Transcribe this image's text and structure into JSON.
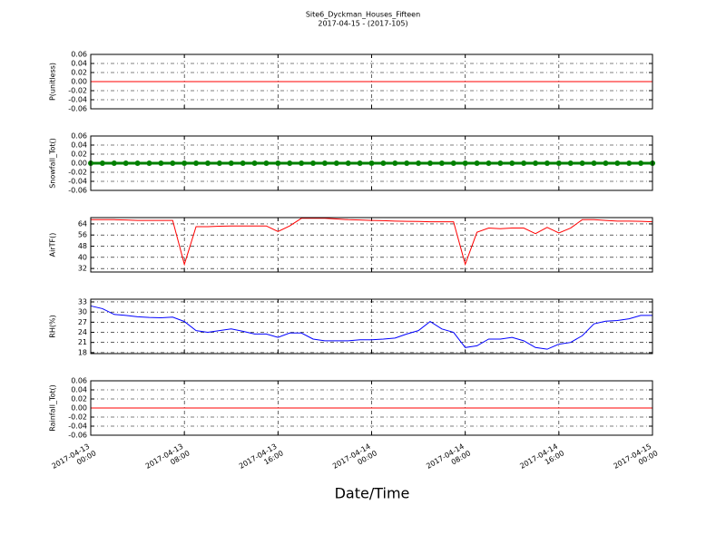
{
  "title": "Site6_Dyckman_Houses_Fifteen",
  "subtitle": "2017-04-15 - (2017-105)",
  "x_axis": {
    "label": "Date/Time",
    "xlim": [
      "2017-04-13 00:00",
      "2017-04-15 00:00"
    ],
    "xticks": [
      "2017-04-13 00:00",
      "2017-04-13 08:00",
      "2017-04-13 16:00",
      "2017-04-14 00:00",
      "2017-04-14 08:00",
      "2017-04-14 16:00",
      "2017-04-15 00:00"
    ],
    "x": [
      "2017-04-13 00:00",
      "2017-04-13 01:00",
      "2017-04-13 02:00",
      "2017-04-13 03:00",
      "2017-04-13 04:00",
      "2017-04-13 05:00",
      "2017-04-13 06:00",
      "2017-04-13 07:00",
      "2017-04-13 08:00",
      "2017-04-13 09:00",
      "2017-04-13 10:00",
      "2017-04-13 11:00",
      "2017-04-13 12:00",
      "2017-04-13 13:00",
      "2017-04-13 14:00",
      "2017-04-13 15:00",
      "2017-04-13 16:00",
      "2017-04-13 17:00",
      "2017-04-13 18:00",
      "2017-04-13 19:00",
      "2017-04-13 20:00",
      "2017-04-13 21:00",
      "2017-04-13 22:00",
      "2017-04-13 23:00",
      "2017-04-14 00:00",
      "2017-04-14 01:00",
      "2017-04-14 02:00",
      "2017-04-14 03:00",
      "2017-04-14 04:00",
      "2017-04-14 05:00",
      "2017-04-14 06:00",
      "2017-04-14 07:00",
      "2017-04-14 08:00",
      "2017-04-14 09:00",
      "2017-04-14 10:00",
      "2017-04-14 11:00",
      "2017-04-14 12:00",
      "2017-04-14 13:00",
      "2017-04-14 14:00",
      "2017-04-14 15:00",
      "2017-04-14 16:00",
      "2017-04-14 17:00",
      "2017-04-14 18:00",
      "2017-04-14 19:00",
      "2017-04-14 20:00",
      "2017-04-14 21:00",
      "2017-04-14 22:00",
      "2017-04-14 23:00",
      "2017-04-15 00:00"
    ]
  },
  "chart_data": [
    {
      "type": "line",
      "ylabel": "P(unitless)",
      "ylim": [
        -0.06,
        0.06
      ],
      "grid": true,
      "yticks": [
        -0.06,
        -0.04,
        -0.02,
        {
          "value": 0,
          "label": "0.00"
        },
        0.02,
        0.04,
        0.06
      ],
      "series": [
        {
          "color": "#ff0000",
          "markers": false,
          "values": [
            0,
            0,
            0,
            0,
            0,
            0,
            0,
            0,
            0,
            0,
            0,
            0,
            0,
            0,
            0,
            0,
            0,
            0,
            0,
            0,
            0,
            0,
            0,
            0,
            0,
            0,
            0,
            0,
            0,
            0,
            0,
            0,
            0,
            0,
            0,
            0,
            0,
            0,
            0,
            0,
            0,
            0,
            0,
            0,
            0,
            0,
            0,
            0,
            0
          ]
        }
      ]
    },
    {
      "type": "line",
      "ylabel": "Snowfall_Tot()",
      "ylim": [
        -0.06,
        0.06
      ],
      "grid": true,
      "yticks": [
        -0.06,
        -0.04,
        -0.02,
        {
          "value": 0,
          "label": "0.00"
        },
        0.02,
        0.04,
        0.06
      ],
      "series": [
        {
          "color": "#008000",
          "markers": true,
          "values": [
            0,
            0,
            0,
            0,
            0,
            0,
            0,
            0,
            0,
            0,
            0,
            0,
            0,
            0,
            0,
            0,
            0,
            0,
            0,
            0,
            0,
            0,
            0,
            0,
            0,
            0,
            0,
            0,
            0,
            0,
            0,
            0,
            0,
            0,
            0,
            0,
            0,
            0,
            0,
            0,
            0,
            0,
            0,
            0,
            0,
            0,
            0,
            0,
            0
          ]
        }
      ]
    },
    {
      "type": "line",
      "ylabel": "AirTF()",
      "ylim": [
        29.5,
        68.5
      ],
      "grid": true,
      "yticks": [
        32,
        40,
        48,
        56,
        64
      ],
      "series": [
        {
          "color": "#ff0000",
          "markers": false,
          "values": [
            67,
            67,
            67,
            66.8,
            66.5,
            66.5,
            66.5,
            66.5,
            35,
            62,
            62,
            62.3,
            62.5,
            62.5,
            62.5,
            62.5,
            58.5,
            62.5,
            68,
            68,
            68,
            67.5,
            67,
            66.8,
            66.5,
            66.3,
            66,
            65.8,
            65.7,
            65.5,
            65.5,
            65.5,
            35,
            58,
            61,
            60.5,
            61,
            61,
            57,
            61.5,
            57.5,
            61,
            67,
            67,
            66.5,
            66,
            66,
            65.8,
            65.5
          ]
        }
      ]
    },
    {
      "type": "line",
      "ylabel": "RH(%)",
      "ylim": [
        17.7,
        33.8
      ],
      "grid": true,
      "yticks": [
        18,
        21,
        24,
        27,
        30,
        33
      ],
      "series": [
        {
          "color": "#0000ff",
          "markers": false,
          "values": [
            31.8,
            31,
            29.3,
            29,
            28.6,
            28.4,
            28.3,
            28.5,
            27.2,
            24.5,
            24,
            24.5,
            25,
            24.3,
            23.5,
            23.5,
            22.5,
            23.8,
            23.8,
            22,
            21.5,
            21.5,
            21.5,
            21.8,
            21.8,
            22,
            22.3,
            23.5,
            24.5,
            27.2,
            25,
            24,
            19.5,
            20,
            22,
            22,
            22.5,
            21.5,
            19.5,
            19,
            20.5,
            21,
            23,
            26.5,
            27.3,
            27.5,
            28,
            29,
            29
          ]
        }
      ]
    },
    {
      "type": "line",
      "ylabel": "Rainfall_Tot()",
      "ylim": [
        -0.06,
        0.06
      ],
      "grid": true,
      "yticks": [
        -0.06,
        -0.04,
        -0.02,
        {
          "value": 0,
          "label": "0.00"
        },
        0.02,
        0.04,
        0.06
      ],
      "series": [
        {
          "color": "#ff0000",
          "markers": false,
          "values": [
            0,
            0,
            0,
            0,
            0,
            0,
            0,
            0,
            0,
            0,
            0,
            0,
            0,
            0,
            0,
            0,
            0,
            0,
            0,
            0,
            0,
            0,
            0,
            0,
            0,
            0,
            0,
            0,
            0,
            0,
            0,
            0,
            0,
            0,
            0,
            0,
            0,
            0,
            0,
            0,
            0,
            0,
            0,
            0,
            0,
            0,
            0,
            0,
            0
          ]
        }
      ]
    }
  ]
}
